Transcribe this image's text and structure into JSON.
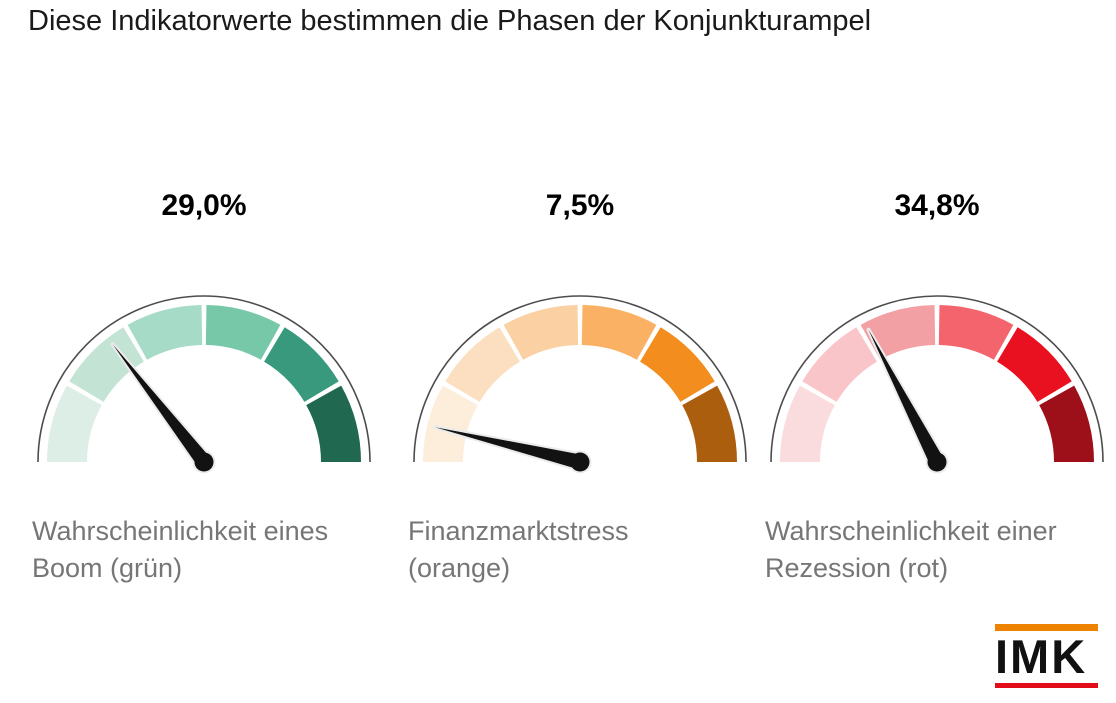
{
  "title": "Diese Indikatorwerte bestimmen die Phasen der Konjunkturampel",
  "chart_data": {
    "type": "gauge",
    "arc_span_degrees": 180,
    "range": [
      0,
      100
    ],
    "segments_per_gauge": 6,
    "gauges": [
      {
        "value": 29.0,
        "value_label": "29,0%",
        "caption_line1": "Wahrscheinlichkeit eines",
        "caption_line2": "Boom (grün)",
        "caption_full": "Wahrscheinlichkeit eines Boom (grün)",
        "palette": [
          "#DCEEE6",
          "#C3E4D5",
          "#A6DBC7",
          "#77C7A9",
          "#38997D",
          "#20684F"
        ]
      },
      {
        "value": 7.5,
        "value_label": "7,5%",
        "caption_line1": "Finanzmarktstress",
        "caption_line2": "(orange)",
        "caption_full": "Finanzmarktstress (orange)",
        "palette": [
          "#FDEDDB",
          "#FCDFC0",
          "#FBD1A3",
          "#FAB164",
          "#F28D1E",
          "#AC5E0F"
        ]
      },
      {
        "value": 34.8,
        "value_label": "34,8%",
        "caption_line1": "Wahrscheinlichkeit einer",
        "caption_line2": "Rezession (rot)",
        "caption_full": "Wahrscheinlichkeit einer Rezession (rot)",
        "palette": [
          "#FBDCDE",
          "#F9C5C8",
          "#F3A0A5",
          "#F4646C",
          "#E9101F",
          "#9D1019"
        ]
      }
    ]
  },
  "colors": {
    "background": "#FFFFFF",
    "title": "#1A1A1A",
    "value": "#000000",
    "caption": "#767676",
    "outline_arc": "#4D4D4D",
    "needle": "#121212",
    "needle_halo": "#EBEBEB"
  },
  "logo": {
    "text": "IMK",
    "top_bar_color": "#EE8300",
    "bottom_bar_color": "#E30D1A",
    "text_color": "#111111"
  }
}
